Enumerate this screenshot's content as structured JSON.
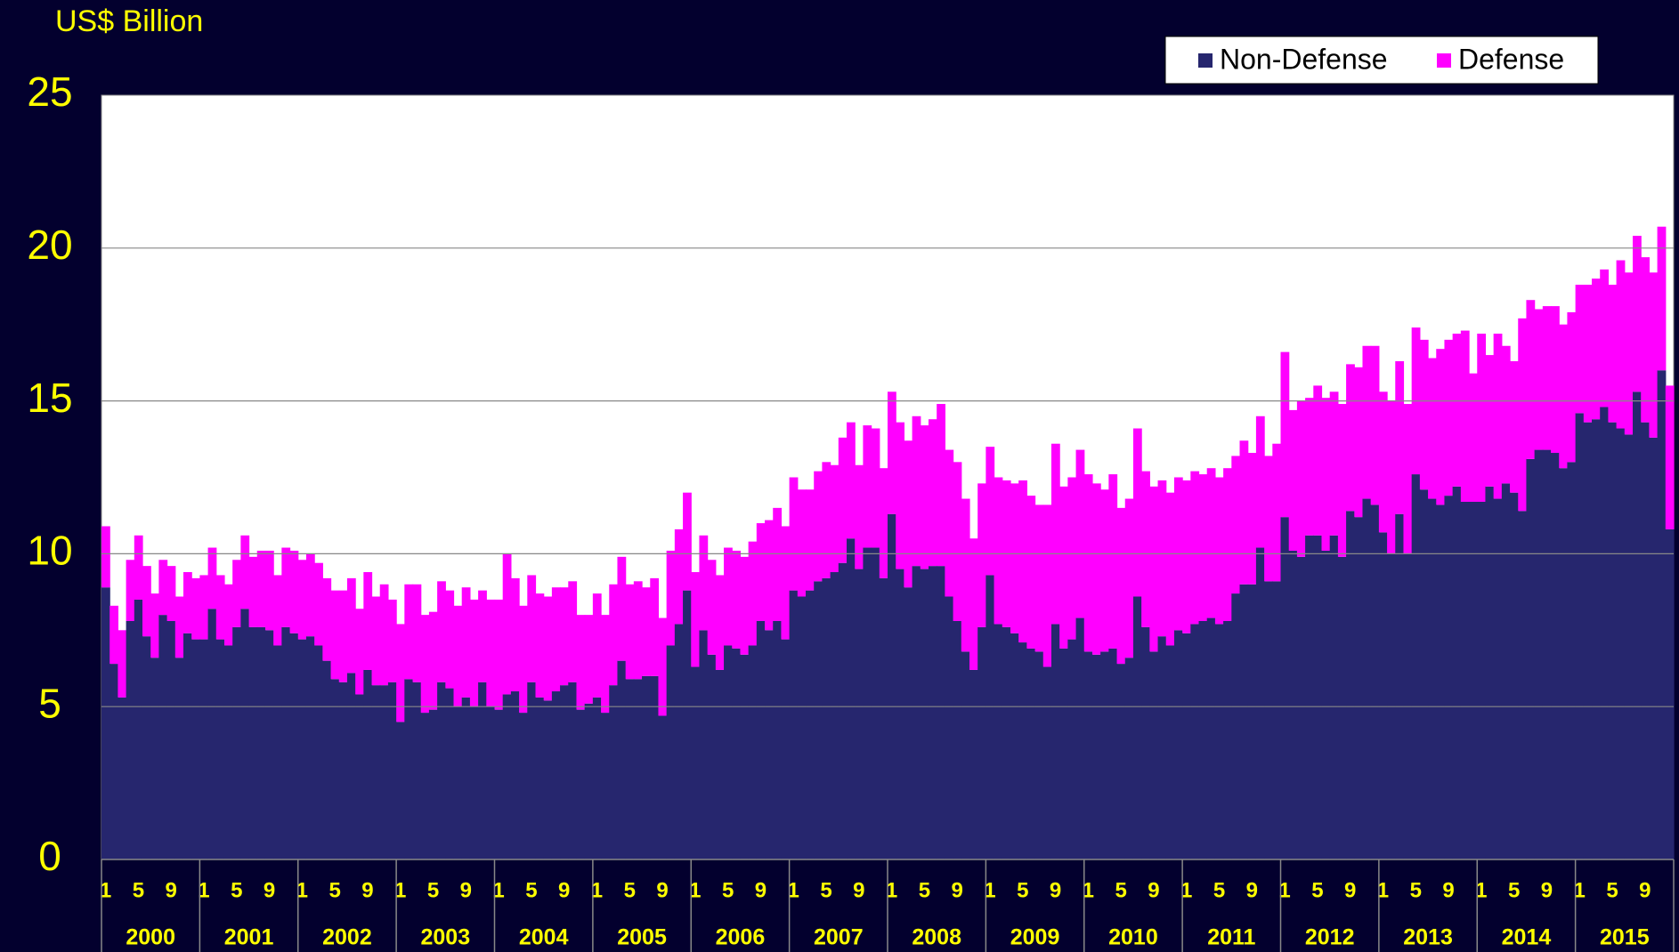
{
  "chart_data": {
    "type": "stacked_bar",
    "y_label": "US$ Billion",
    "categories": [
      "1",
      null,
      null,
      null,
      "5",
      null,
      null,
      null,
      "9",
      null,
      null,
      null,
      "1",
      null,
      null,
      null,
      "5",
      null,
      null,
      null,
      "9",
      null,
      null,
      null,
      "1",
      null,
      null,
      null,
      "5",
      null,
      null,
      null,
      "9",
      null,
      null,
      null,
      "1",
      null,
      null,
      null,
      "5",
      null,
      null,
      null,
      "9",
      null,
      null,
      null,
      "1",
      null,
      null,
      null,
      "5",
      null,
      null,
      null,
      "9",
      null,
      null,
      null,
      "1",
      null,
      null,
      null,
      "5",
      null,
      null,
      null,
      "9",
      null,
      null,
      null,
      "1",
      null,
      null,
      null,
      "5",
      null,
      null,
      null,
      "9",
      null,
      null,
      null,
      "1",
      null,
      null,
      null,
      "5",
      null,
      null,
      null,
      "9",
      null,
      null,
      null,
      "1",
      null,
      null,
      null,
      "5",
      null,
      null,
      null,
      "9",
      null,
      null,
      null,
      "1",
      null,
      null,
      null,
      "5",
      null,
      null,
      null,
      "9",
      null,
      null,
      null,
      "1",
      null,
      null,
      null,
      "5",
      null,
      null,
      null,
      "9",
      null,
      null,
      null,
      "1",
      null,
      null,
      null,
      "5",
      null,
      null,
      null,
      "9",
      null,
      null,
      null,
      "1",
      null,
      null,
      null,
      "5",
      null,
      null,
      null,
      "9",
      null,
      null,
      null,
      "1",
      null,
      null,
      null,
      "5",
      null,
      null,
      null,
      "9",
      null,
      null,
      null,
      "1",
      null,
      null,
      null,
      "5",
      null,
      null,
      null,
      "9",
      null,
      null,
      null,
      "1",
      null,
      null,
      null,
      "5",
      null,
      null,
      null,
      "9",
      null,
      null,
      null
    ],
    "years": [
      "2000",
      "2001",
      "2002",
      "2003",
      "2004",
      "2005",
      "2006",
      "2007",
      "2008",
      "2009",
      "2010",
      "2011",
      "2012",
      "2013",
      "2014",
      "2015"
    ],
    "series": [
      {
        "name": "Non-Defense",
        "color": "#26266e",
        "values": [
          8.9,
          6.4,
          5.3,
          7.8,
          8.5,
          7.3,
          6.6,
          8.0,
          7.8,
          6.6,
          7.4,
          7.2,
          7.2,
          8.2,
          7.2,
          7.0,
          7.6,
          8.2,
          7.6,
          7.6,
          7.5,
          7.0,
          7.6,
          7.4,
          7.2,
          7.3,
          7.0,
          6.5,
          5.9,
          5.8,
          6.1,
          5.4,
          6.2,
          5.7,
          5.7,
          5.8,
          4.5,
          5.9,
          5.8,
          4.8,
          4.9,
          5.8,
          5.6,
          5.0,
          5.3,
          5.0,
          5.8,
          5.0,
          4.9,
          5.4,
          5.5,
          4.8,
          5.8,
          5.3,
          5.2,
          5.5,
          5.7,
          5.8,
          4.9,
          5.1,
          5.3,
          4.8,
          5.7,
          6.5,
          5.9,
          5.9,
          6.0,
          6.0,
          4.7,
          7.0,
          7.7,
          8.8,
          6.3,
          7.5,
          6.7,
          6.2,
          7.0,
          6.9,
          6.7,
          7.0,
          7.8,
          7.5,
          7.8,
          7.2,
          8.8,
          8.6,
          8.8,
          9.1,
          9.2,
          9.4,
          9.7,
          10.5,
          9.5,
          10.2,
          10.2,
          9.2,
          11.3,
          9.5,
          8.9,
          9.6,
          9.5,
          9.6,
          9.6,
          8.6,
          7.8,
          6.8,
          6.2,
          7.6,
          9.3,
          7.7,
          7.6,
          7.4,
          7.1,
          6.9,
          6.8,
          6.3,
          7.7,
          6.9,
          7.2,
          7.9,
          6.8,
          6.7,
          6.8,
          6.9,
          6.4,
          6.6,
          8.6,
          7.6,
          6.8,
          7.3,
          7.0,
          7.5,
          7.4,
          7.7,
          7.8,
          7.9,
          7.7,
          7.8,
          8.7,
          9.0,
          9.0,
          10.2,
          9.1,
          9.1,
          11.2,
          10.1,
          9.9,
          10.6,
          10.6,
          10.1,
          10.6,
          9.9,
          11.4,
          11.2,
          11.8,
          11.6,
          10.7,
          10.0,
          11.3,
          10.0,
          12.6,
          12.1,
          11.8,
          11.6,
          11.9,
          12.2,
          11.7,
          11.7,
          11.7,
          12.2,
          11.8,
          12.3,
          12.0,
          11.4,
          13.1,
          13.4,
          13.4,
          13.3,
          12.8,
          13.0,
          14.6,
          14.3,
          14.4,
          14.8,
          14.3,
          14.1,
          13.9,
          15.3,
          14.3,
          13.8,
          16.0,
          10.8
        ]
      },
      {
        "name": "Defense",
        "color": "#ff00ff",
        "values": [
          2.0,
          1.9,
          2.2,
          2.0,
          2.1,
          2.3,
          2.1,
          1.8,
          1.8,
          2.0,
          2.0,
          2.0,
          2.1,
          2.0,
          2.1,
          2.0,
          2.2,
          2.4,
          2.3,
          2.5,
          2.6,
          2.3,
          2.6,
          2.7,
          2.6,
          2.7,
          2.7,
          2.7,
          2.9,
          3.0,
          3.1,
          2.8,
          3.2,
          2.9,
          3.3,
          2.7,
          3.2,
          3.1,
          3.2,
          3.2,
          3.2,
          3.3,
          3.2,
          3.3,
          3.6,
          3.5,
          3.0,
          3.5,
          3.6,
          4.6,
          3.7,
          3.5,
          3.5,
          3.4,
          3.4,
          3.4,
          3.2,
          3.3,
          3.1,
          2.9,
          3.4,
          3.2,
          3.3,
          3.4,
          3.1,
          3.2,
          2.9,
          3.2,
          3.2,
          3.1,
          3.1,
          3.2,
          3.1,
          3.1,
          3.1,
          3.1,
          3.2,
          3.2,
          3.2,
          3.4,
          3.2,
          3.6,
          3.7,
          3.7,
          3.7,
          3.5,
          3.3,
          3.6,
          3.8,
          3.5,
          4.1,
          3.8,
          3.4,
          4.0,
          3.9,
          3.6,
          4.0,
          4.8,
          4.8,
          4.9,
          4.7,
          4.8,
          5.3,
          4.8,
          5.2,
          5.0,
          4.3,
          4.7,
          4.2,
          4.8,
          4.8,
          4.9,
          5.3,
          5.0,
          4.8,
          5.3,
          5.9,
          5.3,
          5.3,
          5.5,
          5.8,
          5.6,
          5.3,
          5.7,
          5.1,
          5.2,
          5.5,
          5.1,
          5.4,
          5.1,
          5.0,
          5.0,
          5.0,
          5.0,
          4.8,
          4.9,
          4.8,
          5.0,
          4.5,
          4.7,
          4.3,
          4.3,
          4.1,
          4.5,
          5.4,
          4.6,
          5.1,
          4.5,
          4.9,
          5.0,
          4.7,
          5.0,
          4.8,
          4.9,
          5.0,
          5.2,
          4.6,
          5.0,
          5.0,
          4.9,
          4.8,
          4.9,
          4.6,
          5.1,
          5.1,
          5.0,
          5.6,
          4.2,
          5.5,
          4.3,
          5.4,
          4.5,
          4.3,
          6.3,
          5.2,
          4.6,
          4.7,
          4.8,
          4.7,
          4.9,
          4.2,
          4.5,
          4.6,
          4.5,
          4.5,
          5.5,
          5.3,
          5.1,
          5.4,
          5.4,
          4.7,
          4.7
        ]
      }
    ],
    "ylim": [
      0,
      25
    ],
    "yticks": [
      0,
      5,
      10,
      15,
      20,
      25
    ],
    "grid": true,
    "legend": "top-right"
  }
}
